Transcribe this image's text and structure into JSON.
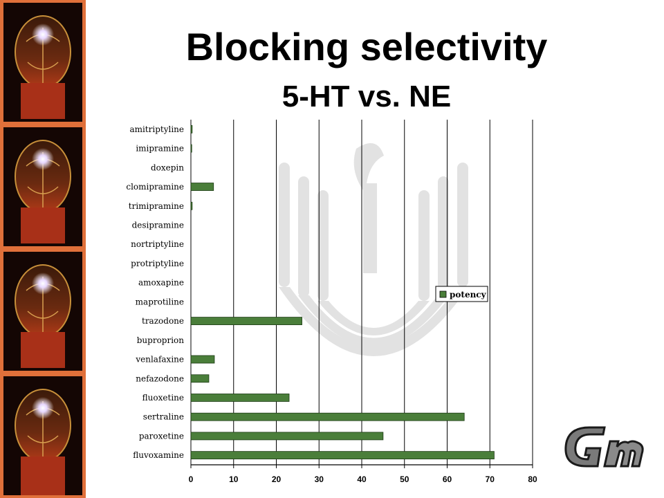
{
  "slide": {
    "title": "Blocking selectivity",
    "subtitle": "5-HT vs. NE"
  },
  "colors": {
    "bar_fill": "#4a7e3a",
    "bar_stroke": "#1c3a14",
    "gridline": "#000000",
    "sidebar_bg": "#c8582a",
    "watermark": "#dcdcdc"
  },
  "icons": {
    "sidebar": "glowing-head-artwork",
    "watermark": "torch-emblem",
    "logo": "gm-logo"
  },
  "chart_data": {
    "type": "bar",
    "orientation": "horizontal",
    "categories": [
      "amitriptyline",
      "imipramine",
      "doxepin",
      "clomipramine",
      "trimipramine",
      "desipramine",
      "nortriptyline",
      "protriptyline",
      "amoxapine",
      "maprotiline",
      "trazodone",
      "buproprion",
      "venlafaxine",
      "nefazodone",
      "fluoxetine",
      "sertraline",
      "paroxetine",
      "fluvoxamine"
    ],
    "series": [
      {
        "name": "potency",
        "values": [
          0.3,
          0.2,
          0,
          5.3,
          0.3,
          0,
          0,
          0,
          0,
          0,
          26,
          0,
          5.5,
          4.2,
          23,
          64,
          45,
          71
        ]
      }
    ],
    "xlim": [
      0,
      80
    ],
    "x_ticks": [
      0,
      10,
      20,
      30,
      40,
      50,
      60,
      70,
      80
    ],
    "grid": "vertical",
    "legend_position": "right"
  }
}
